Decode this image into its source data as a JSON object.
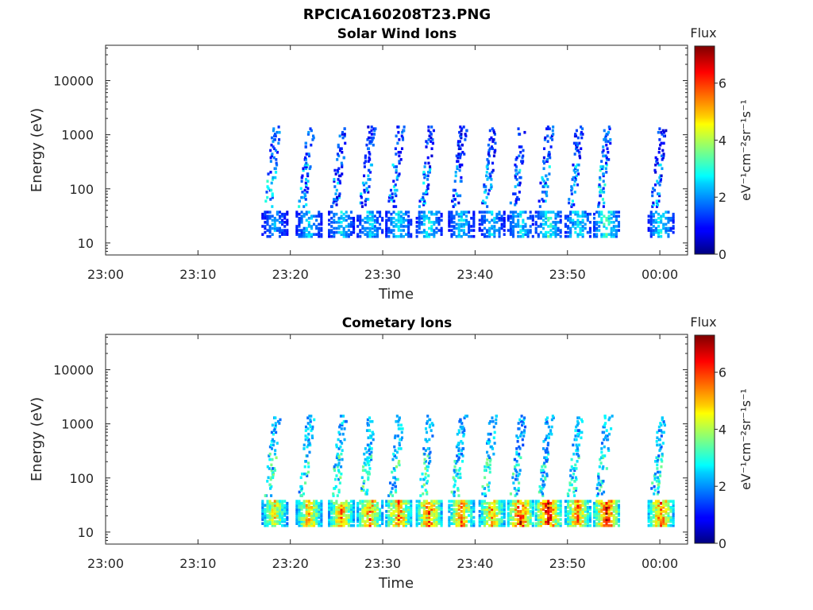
{
  "figure": {
    "title": "RPCICA160208T23.PNG"
  },
  "chart_data": [
    {
      "type": "heatmap",
      "title": "Solar Wind Ions",
      "xlabel": "Time",
      "ylabel": "Energy (eV)",
      "x_ticks": [
        "23:00",
        "23:10",
        "23:20",
        "23:30",
        "23:40",
        "23:50",
        "00:00"
      ],
      "x_range_minutes": [
        0,
        63
      ],
      "y_scale": "log",
      "y_ticks": [
        "10",
        "100",
        "1000",
        "10000"
      ],
      "y_range": [
        6,
        45000
      ],
      "colorbar": {
        "title": "Flux",
        "unit": "eV⁻¹cm⁻²sr⁻¹s⁻¹",
        "ticks": [
          "0",
          "2",
          "4",
          "6"
        ],
        "range": [
          0,
          7.3
        ]
      },
      "grid": false,
      "bursts": [
        {
          "t": 18.2,
          "lowE": 2.1,
          "highE": 0.9
        },
        {
          "t": 21.9,
          "lowE": 2.4,
          "highE": 0.8
        },
        {
          "t": 25.4,
          "lowE": 2.6,
          "highE": 0.7
        },
        {
          "t": 28.5,
          "lowE": 2.5,
          "highE": 0.6
        },
        {
          "t": 31.6,
          "lowE": 2.6,
          "highE": 0.7
        },
        {
          "t": 34.9,
          "lowE": 2.7,
          "highE": 0.6
        },
        {
          "t": 38.4,
          "lowE": 2.5,
          "highE": 0.5
        },
        {
          "t": 41.7,
          "lowE": 2.4,
          "highE": 0.6
        },
        {
          "t": 44.8,
          "lowE": 2.7,
          "highE": 0.7
        },
        {
          "t": 47.8,
          "lowE": 3.1,
          "highE": 0.7
        },
        {
          "t": 51.0,
          "lowE": 2.8,
          "highE": 0.6
        },
        {
          "t": 54.1,
          "lowE": 3.2,
          "highE": 0.9
        },
        {
          "t": 60.0,
          "lowE": 2.7,
          "highE": 0.5
        }
      ]
    },
    {
      "type": "heatmap",
      "title": "Cometary Ions",
      "xlabel": "Time",
      "ylabel": "Energy (eV)",
      "x_ticks": [
        "23:00",
        "23:10",
        "23:20",
        "23:30",
        "23:40",
        "23:50",
        "00:00"
      ],
      "x_range_minutes": [
        0,
        63
      ],
      "y_scale": "log",
      "y_ticks": [
        "10",
        "100",
        "1000",
        "10000"
      ],
      "y_range": [
        6,
        45000
      ],
      "colorbar": {
        "title": "Flux",
        "unit": "eV⁻¹cm⁻²sr⁻¹s⁻¹",
        "ticks": [
          "0",
          "2",
          "4",
          "6"
        ],
        "range": [
          0,
          7.3
        ]
      },
      "grid": false,
      "bursts": [
        {
          "t": 18.2,
          "lowE": 4.6,
          "highE": 1.6
        },
        {
          "t": 21.9,
          "lowE": 5.2,
          "highE": 1.5
        },
        {
          "t": 25.4,
          "lowE": 5.3,
          "highE": 1.6
        },
        {
          "t": 28.5,
          "lowE": 5.4,
          "highE": 1.6
        },
        {
          "t": 31.6,
          "lowE": 5.6,
          "highE": 1.6
        },
        {
          "t": 34.9,
          "lowE": 5.6,
          "highE": 1.6
        },
        {
          "t": 38.4,
          "lowE": 5.4,
          "highE": 1.5
        },
        {
          "t": 41.7,
          "lowE": 5.3,
          "highE": 1.5
        },
        {
          "t": 44.8,
          "lowE": 6.1,
          "highE": 1.4
        },
        {
          "t": 47.8,
          "lowE": 6.4,
          "highE": 1.4
        },
        {
          "t": 51.0,
          "lowE": 5.6,
          "highE": 1.5
        },
        {
          "t": 54.1,
          "lowE": 6.3,
          "highE": 1.5
        },
        {
          "t": 60.0,
          "lowE": 5.5,
          "highE": 1.5
        }
      ]
    }
  ]
}
